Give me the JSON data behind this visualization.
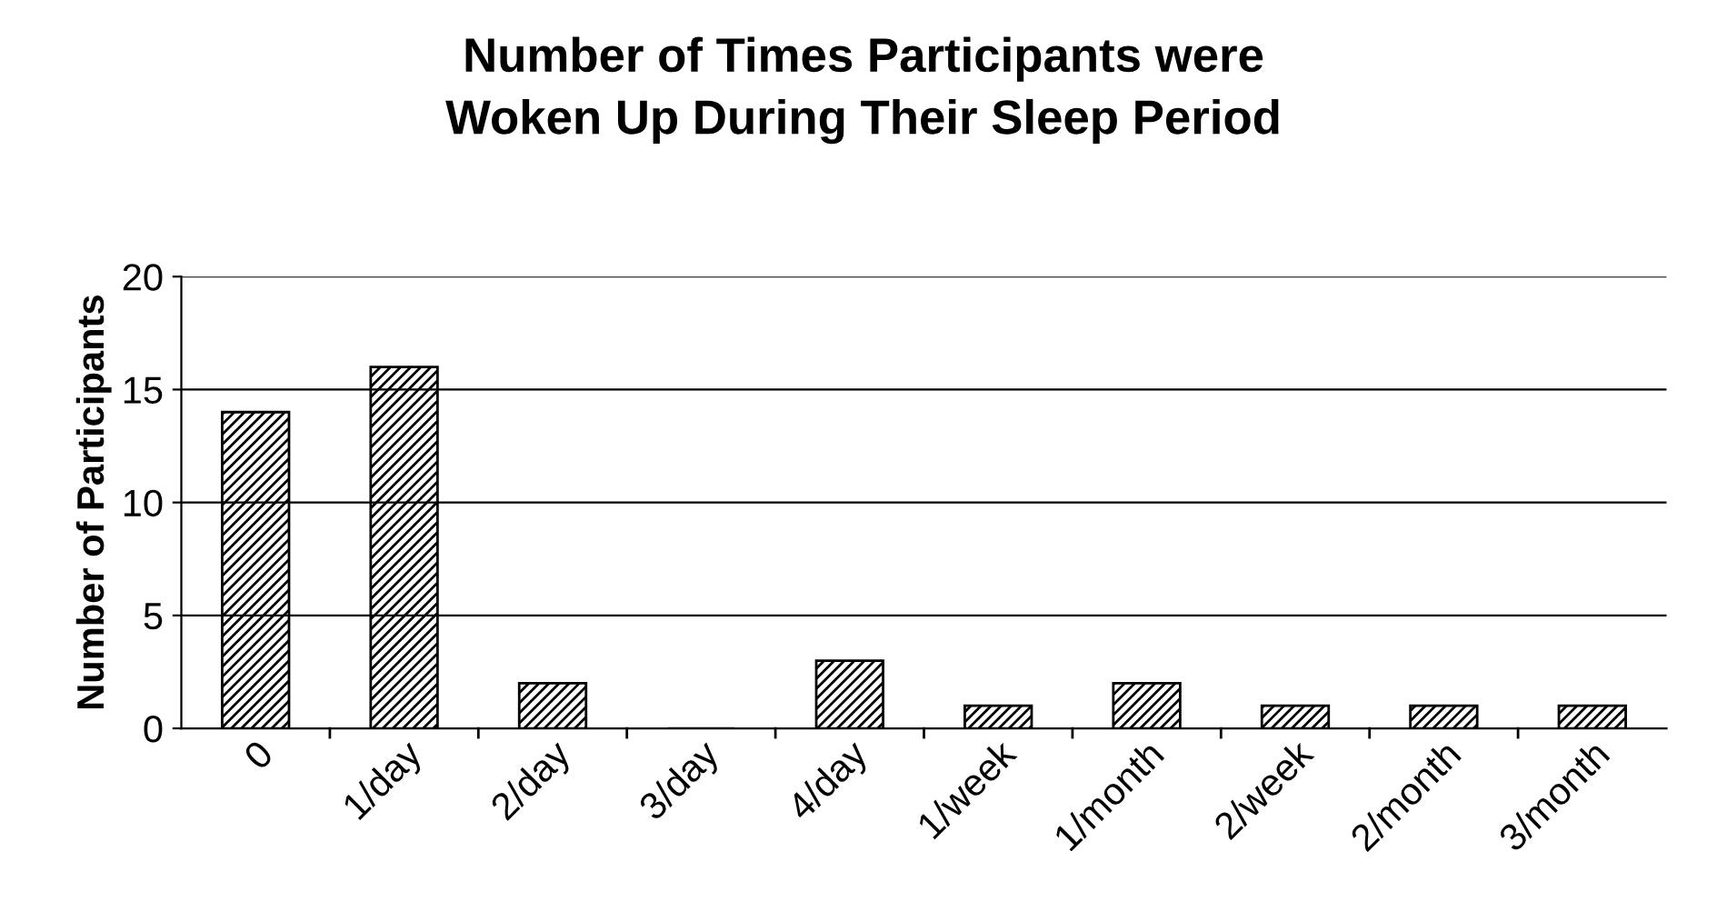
{
  "chart_data": {
    "type": "bar",
    "title": "Number of Times Participants were\nWoken Up During Their Sleep Period",
    "ylabel": "Number of Participants",
    "categories": [
      "0",
      "1/day",
      "2/day",
      "3/day",
      "4/day",
      "1/week",
      "1/month",
      "2/week",
      "2/month",
      "3/month"
    ],
    "values": [
      14,
      16,
      2,
      0,
      3,
      1,
      2,
      1,
      1,
      1
    ],
    "color": "#000000",
    "ylim": [
      0,
      20
    ],
    "yticks": [
      0,
      5,
      10,
      15,
      20
    ],
    "grid": "y"
  }
}
